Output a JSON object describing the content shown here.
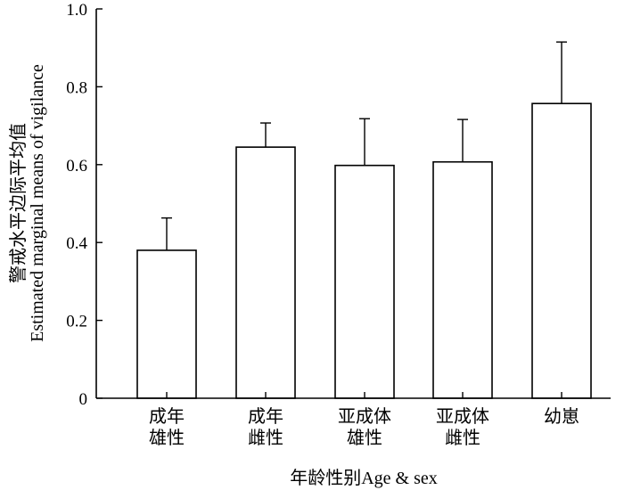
{
  "chart_data": {
    "type": "bar",
    "categories": [
      [
        "成年",
        "雄性"
      ],
      [
        "成年",
        "雌性"
      ],
      [
        "亚成体",
        "雄性"
      ],
      [
        "亚成体",
        "雌性"
      ],
      [
        "幼崽"
      ]
    ],
    "values": [
      0.38,
      0.645,
      0.598,
      0.607,
      0.757
    ],
    "error_upper": [
      0.463,
      0.707,
      0.718,
      0.716,
      0.915
    ],
    "xlabel": "年龄性别Age & sex",
    "ylabel": [
      "警戒水平边际平均值",
      "Estimated marginal means of vigilance"
    ],
    "ylim": [
      0,
      1.0
    ],
    "yticks": [
      "0",
      "0.2",
      "0.4",
      "0.6",
      "0.8",
      "1.0"
    ],
    "bar_fill": "#ffffff",
    "bar_stroke": "#000000",
    "grid": false,
    "legend": "none"
  }
}
